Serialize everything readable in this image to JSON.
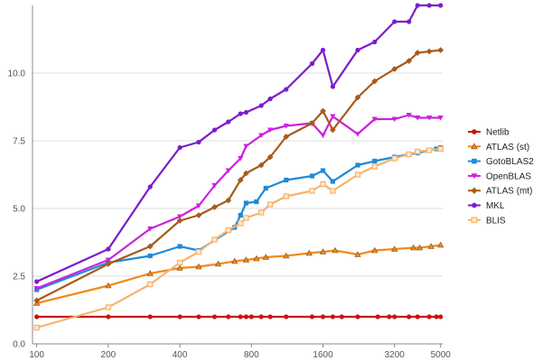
{
  "chart_data": {
    "type": "line",
    "title": "",
    "xlabel": "",
    "ylabel": "",
    "x_scale": "log",
    "xlim": [
      96,
      5100
    ],
    "ylim": [
      0,
      12.5
    ],
    "grid": "horizontal",
    "legend_position": "right",
    "x_ticks": [
      100,
      200,
      400,
      800,
      1600,
      3200,
      5000
    ],
    "x_tick_labels": [
      "100",
      "200",
      "400",
      "800",
      "1600",
      "3200",
      "5000"
    ],
    "y_ticks": [
      0,
      2.5,
      5,
      7.5,
      10
    ],
    "y_tick_labels": [
      "0.0",
      "2.5",
      "5.0",
      "7.5",
      "10.0"
    ],
    "series": [
      {
        "name": "Netlib",
        "color": "#cc1111",
        "marker": "circle",
        "x": [
          100,
          200,
          300,
          400,
          480,
          560,
          640,
          720,
          760,
          800,
          880,
          960,
          1120,
          1440,
          1600,
          1760,
          1920,
          2240,
          2720,
          3040,
          3200,
          3680,
          4000,
          4480,
          4800,
          5000
        ],
        "y": [
          1.0,
          1.0,
          1.0,
          1.0,
          1.0,
          1.0,
          1.0,
          1.0,
          1.0,
          1.0,
          1.0,
          1.0,
          1.0,
          1.0,
          1.0,
          1.0,
          1.0,
          1.0,
          1.0,
          1.0,
          1.0,
          1.0,
          1.0,
          1.0,
          1.0,
          1.0
        ]
      },
      {
        "name": "ATLAS (st)",
        "color": "#f08a1e",
        "marker": "triangle-up",
        "x": [
          100,
          200,
          300,
          400,
          480,
          580,
          680,
          760,
          840,
          920,
          1120,
          1400,
          1600,
          1800,
          2240,
          2640,
          3200,
          3840,
          4080,
          4560,
          5000
        ],
        "y": [
          1.5,
          2.15,
          2.6,
          2.8,
          2.85,
          2.95,
          3.05,
          3.1,
          3.15,
          3.2,
          3.25,
          3.35,
          3.4,
          3.45,
          3.3,
          3.45,
          3.5,
          3.55,
          3.55,
          3.6,
          3.65
        ]
      },
      {
        "name": "GotoBLAS2",
        "color": "#1f8ad8",
        "marker": "square",
        "x": [
          100,
          200,
          300,
          400,
          480,
          680,
          720,
          760,
          840,
          920,
          1120,
          1440,
          1600,
          1760,
          2240,
          2640,
          3200,
          3680,
          4000,
          4480,
          4800,
          5000
        ],
        "y": [
          2.0,
          3.0,
          3.25,
          3.6,
          3.45,
          4.3,
          4.75,
          5.2,
          5.25,
          5.75,
          6.05,
          6.2,
          6.4,
          6.0,
          6.6,
          6.75,
          6.9,
          7.0,
          7.05,
          7.15,
          7.2,
          7.25
        ]
      },
      {
        "name": "OpenBLAS",
        "color": "#cc22dd",
        "marker": "triangle-down",
        "x": [
          100,
          200,
          300,
          400,
          480,
          560,
          640,
          720,
          760,
          880,
          960,
          1120,
          1440,
          1600,
          1760,
          2240,
          2640,
          3200,
          3680,
          4000,
          4480,
          5000
        ],
        "y": [
          2.05,
          3.1,
          4.25,
          4.7,
          5.1,
          5.85,
          6.4,
          6.85,
          7.3,
          7.7,
          7.9,
          8.05,
          8.15,
          7.7,
          8.4,
          7.75,
          8.3,
          8.3,
          8.45,
          8.35,
          8.35,
          8.35
        ]
      },
      {
        "name": "ATLAS (mt)",
        "color": "#a85a1a",
        "marker": "diamond",
        "x": [
          100,
          200,
          300,
          400,
          480,
          560,
          640,
          720,
          760,
          880,
          960,
          1120,
          1440,
          1600,
          1760,
          2240,
          2640,
          3200,
          3680,
          4000,
          4480,
          5000
        ],
        "y": [
          1.6,
          2.95,
          3.6,
          4.55,
          4.75,
          5.05,
          5.3,
          6.05,
          6.3,
          6.6,
          6.9,
          7.65,
          8.15,
          8.6,
          7.9,
          9.1,
          9.7,
          10.15,
          10.45,
          10.75,
          10.8,
          10.85
        ]
      },
      {
        "name": "MKL",
        "color": "#7a1ccc",
        "marker": "circle",
        "x": [
          100,
          200,
          300,
          400,
          480,
          560,
          640,
          720,
          760,
          880,
          960,
          1120,
          1440,
          1600,
          1760,
          2240,
          2640,
          3200,
          3680,
          4000,
          4480,
          5000
        ],
        "y": [
          2.3,
          3.5,
          5.8,
          7.25,
          7.45,
          7.9,
          8.2,
          8.5,
          8.55,
          8.8,
          9.05,
          9.4,
          10.35,
          10.85,
          9.5,
          10.85,
          11.15,
          11.9,
          11.9,
          12.5,
          12.5,
          12.5
        ]
      },
      {
        "name": "BLIS",
        "color": "#f4b46e",
        "marker": "square-open",
        "x": [
          100,
          200,
          300,
          400,
          480,
          560,
          640,
          720,
          760,
          880,
          960,
          1120,
          1440,
          1600,
          1760,
          2240,
          2640,
          3200,
          3680,
          4000,
          4480,
          5000
        ],
        "y": [
          0.6,
          1.35,
          2.2,
          3.0,
          3.4,
          3.85,
          4.2,
          4.45,
          4.65,
          4.85,
          5.15,
          5.45,
          5.65,
          5.9,
          5.65,
          6.25,
          6.55,
          6.85,
          7.0,
          7.1,
          7.15,
          7.2
        ]
      }
    ]
  }
}
